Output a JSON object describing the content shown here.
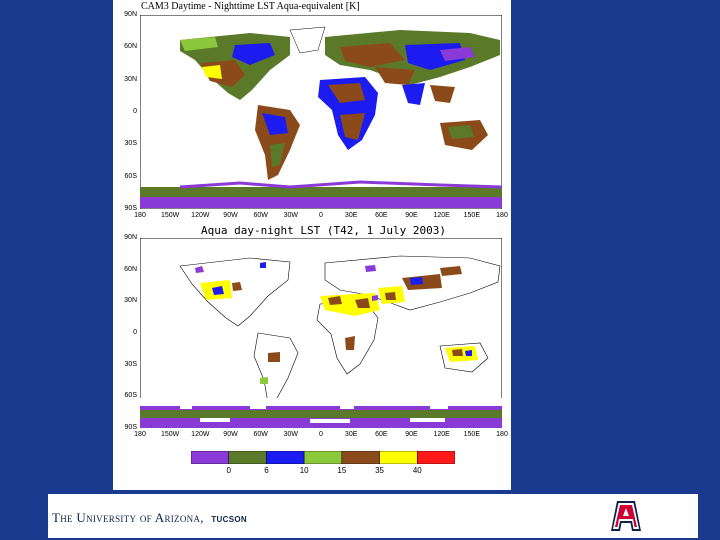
{
  "top_map": {
    "title": "CAM3 Daytime - Nighttime LST Aqua-equivalent [K]",
    "lat_labels": [
      "90N",
      "60N",
      "30N",
      "0",
      "30S",
      "60S",
      "90S"
    ],
    "lon_labels": [
      "180",
      "150W",
      "120W",
      "90W",
      "60W",
      "30W",
      "0",
      "30E",
      "60E",
      "90E",
      "120E",
      "150E",
      "180"
    ]
  },
  "bottom_map": {
    "title": "Aqua day-night LST (T42, 1 July 2003)",
    "lat_labels": [
      "90N",
      "60N",
      "30N",
      "0",
      "30S",
      "60S",
      "90S"
    ],
    "lon_labels": [
      "180",
      "150W",
      "120W",
      "90W",
      "60W",
      "30W",
      "0",
      "30E",
      "60E",
      "90E",
      "120E",
      "150E",
      "180"
    ]
  },
  "legend": {
    "colors": [
      "#8a3ad6",
      "#5a7a2a",
      "#1c1cf0",
      "#8cc83c",
      "#8b4a1a",
      "#ffff00",
      "#ff1a1a"
    ],
    "ticks": [
      "0",
      "6",
      "10",
      "15",
      "35",
      "40"
    ]
  },
  "footer": {
    "university": "The University of Arizona",
    "city": "Tucson",
    "logo_icon": "block-a-logo-icon"
  }
}
